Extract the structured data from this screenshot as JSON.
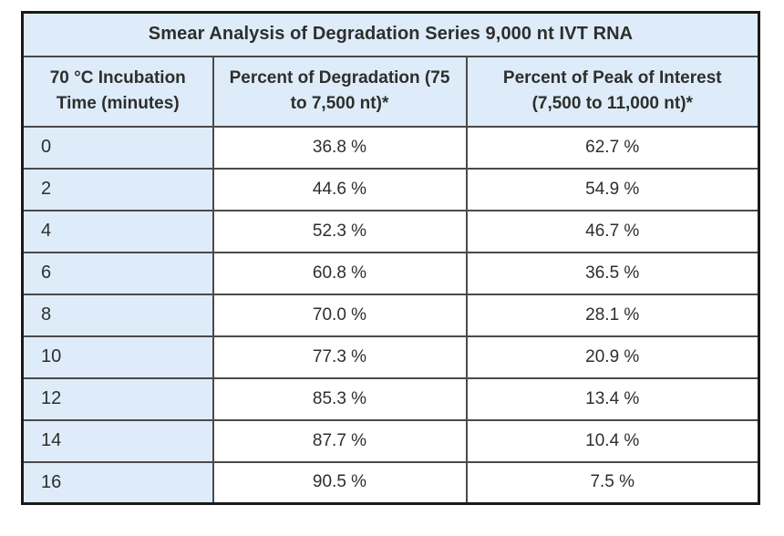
{
  "table": {
    "title": "Smear Analysis of Degradation Series 9,000 nt IVT RNA",
    "columns": [
      "70 °C Incubation Time (minutes)",
      "Percent of Degradation (75 to 7,500 nt)*",
      "Percent of Peak of Interest (7,500 to 11,000 nt)*"
    ],
    "rows": [
      [
        "0",
        "36.8 %",
        "62.7 %"
      ],
      [
        "2",
        "44.6 %",
        "54.9 %"
      ],
      [
        "4",
        "52.3 %",
        "46.7 %"
      ],
      [
        "6",
        "60.8 %",
        "36.5 %"
      ],
      [
        "8",
        "70.0 %",
        "28.1 %"
      ],
      [
        "10",
        "77.3 %",
        "20.9 %"
      ],
      [
        "12",
        "85.3 %",
        "13.4 %"
      ],
      [
        "14",
        "87.7 %",
        "10.4 %"
      ],
      [
        "16",
        "90.5 %",
        "7.5 %"
      ]
    ]
  },
  "colors": {
    "header_bg": "#ddecf8",
    "first_column_bg": "#ddecf8",
    "border_outer": "#1a1a1a",
    "border_inner": "#4a4a4a",
    "text": "#2e2e2e",
    "data_cell_bg": "#ffffff"
  },
  "chart_data": {
    "type": "table",
    "title": "Smear Analysis of Degradation Series 9,000 nt IVT RNA",
    "xlabel": "70 °C Incubation Time (minutes)",
    "categories": [
      0,
      2,
      4,
      6,
      8,
      10,
      12,
      14,
      16
    ],
    "series": [
      {
        "name": "Percent of Degradation (75 to 7,500 nt)*",
        "unit": "%",
        "values": [
          36.8,
          44.6,
          52.3,
          60.8,
          70.0,
          77.3,
          85.3,
          87.7,
          90.5
        ]
      },
      {
        "name": "Percent of Peak of Interest (7,500 to 11,000 nt)*",
        "unit": "%",
        "values": [
          62.7,
          54.9,
          46.7,
          36.5,
          28.1,
          20.9,
          13.4,
          10.4,
          7.5
        ]
      }
    ]
  }
}
